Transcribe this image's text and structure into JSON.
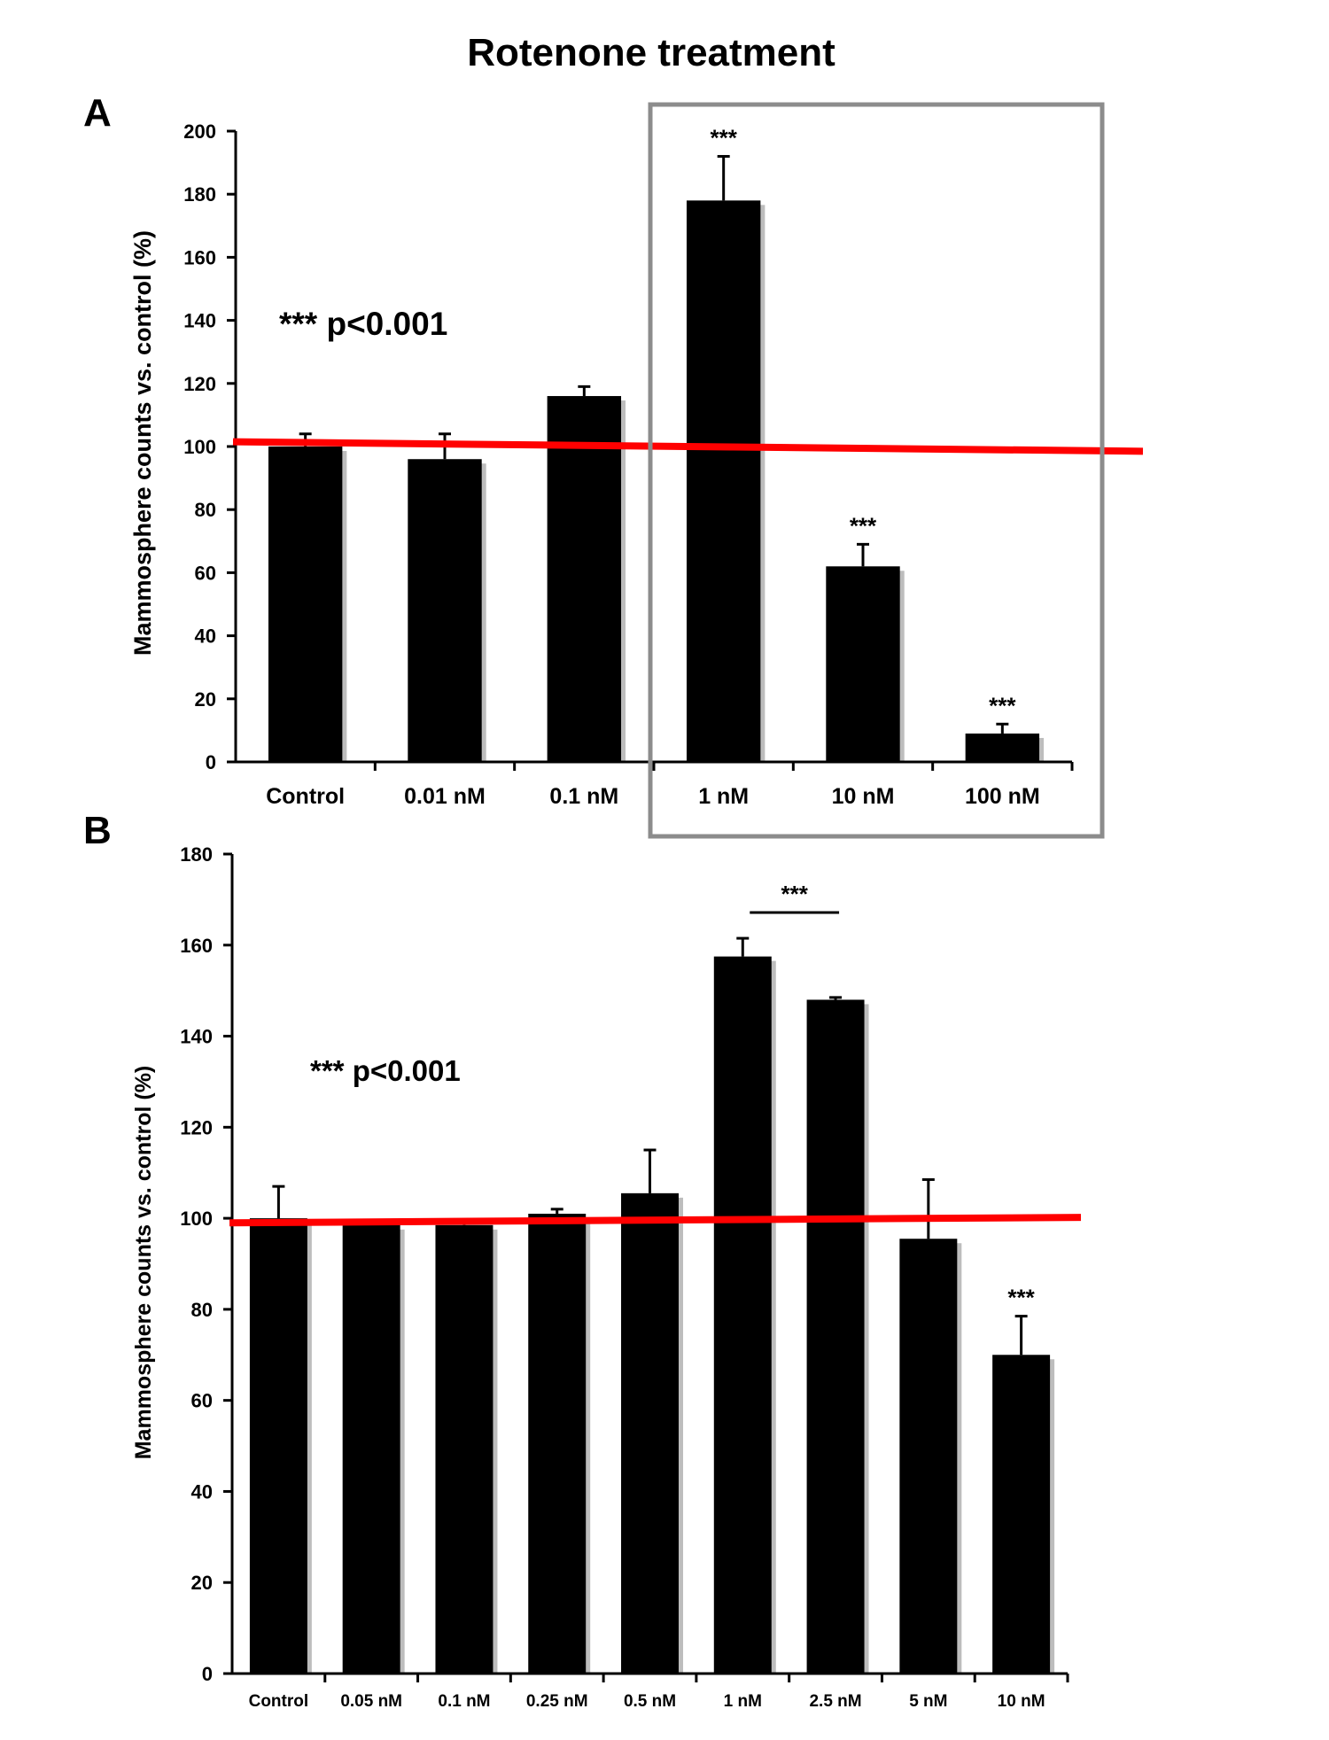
{
  "figure": {
    "title": "Rotenone treatment"
  },
  "chart_data": [
    {
      "type": "bar",
      "panel": "A",
      "categories": [
        "Control",
        "0.01 nM",
        "0.1 nM",
        "1 nM",
        "10 nM",
        "100 nM"
      ],
      "values": [
        100,
        96,
        116,
        178,
        62,
        9
      ],
      "errors": [
        4,
        8,
        3,
        14,
        7,
        3
      ],
      "significance": [
        "",
        "",
        "",
        "***",
        "***",
        "***"
      ],
      "ylabel": "Mammosphere counts vs. control  (%)",
      "xlabel": "",
      "ylim": [
        0,
        200
      ],
      "yticks": [
        0,
        20,
        40,
        60,
        80,
        100,
        120,
        140,
        160,
        180,
        200
      ],
      "reference_line": 100,
      "reference_line_color": "#ff0000",
      "bar_color": "#000000",
      "annotation": "*** p<0.001",
      "highlight_box": {
        "from_category": "1 nM",
        "to_category": "100 nM",
        "color": "#8c8c8c"
      }
    },
    {
      "type": "bar",
      "panel": "B",
      "categories": [
        "Control",
        "0.05 nM",
        "0.1 nM",
        "0.25 nM",
        "0.5 nM",
        "1 nM",
        "2.5 nM",
        "5 nM",
        "10 nM"
      ],
      "values": [
        100,
        98.5,
        98.5,
        101,
        105.5,
        157.5,
        148,
        95.5,
        70
      ],
      "errors": [
        7,
        1,
        0.5,
        1,
        9.5,
        4,
        0.5,
        13,
        8.5
      ],
      "significance": [
        "",
        "",
        "",
        "",
        "",
        "",
        "",
        "",
        "***"
      ],
      "bracket": {
        "from_category": "1 nM",
        "to_category": "2.5 nM",
        "label": "***"
      },
      "ylabel": "Mammosphere counts vs. control  (%)",
      "xlabel": "",
      "ylim": [
        0,
        180
      ],
      "yticks": [
        0,
        20,
        40,
        60,
        80,
        100,
        120,
        140,
        160,
        180
      ],
      "reference_line": 100,
      "reference_line_color": "#ff0000",
      "bar_color": "#000000",
      "annotation": "*** p<0.001"
    }
  ]
}
